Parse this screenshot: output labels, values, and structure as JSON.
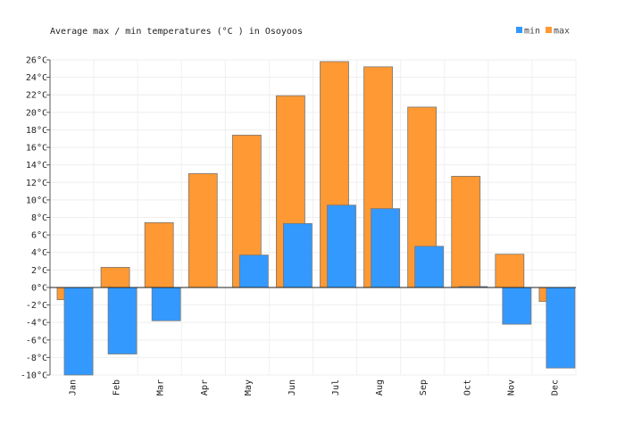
{
  "chart_data": {
    "type": "bar",
    "title": "Average max / min temperatures (°C ) in Osoyoos",
    "categories": [
      "Jan",
      "Feb",
      "Mar",
      "Apr",
      "May",
      "Jun",
      "Jul",
      "Aug",
      "Sep",
      "Oct",
      "Nov",
      "Dec"
    ],
    "series": [
      {
        "name": "min",
        "color": "#3399ff",
        "values": [
          -10.0,
          -7.6,
          -3.8,
          0.0,
          3.7,
          7.3,
          9.4,
          9.0,
          4.7,
          0.1,
          -4.2,
          -9.2
        ]
      },
      {
        "name": "max",
        "color": "#ff9933",
        "values": [
          -1.4,
          2.3,
          7.4,
          13.0,
          17.4,
          21.9,
          25.8,
          25.2,
          20.6,
          12.7,
          3.8,
          -1.6
        ]
      }
    ],
    "ylim": [
      -10,
      26
    ],
    "ytick_step": 2,
    "ytick_suffix": "°C",
    "xlabel": "",
    "ylabel": "",
    "grid": true,
    "legend_position": "top-right"
  }
}
